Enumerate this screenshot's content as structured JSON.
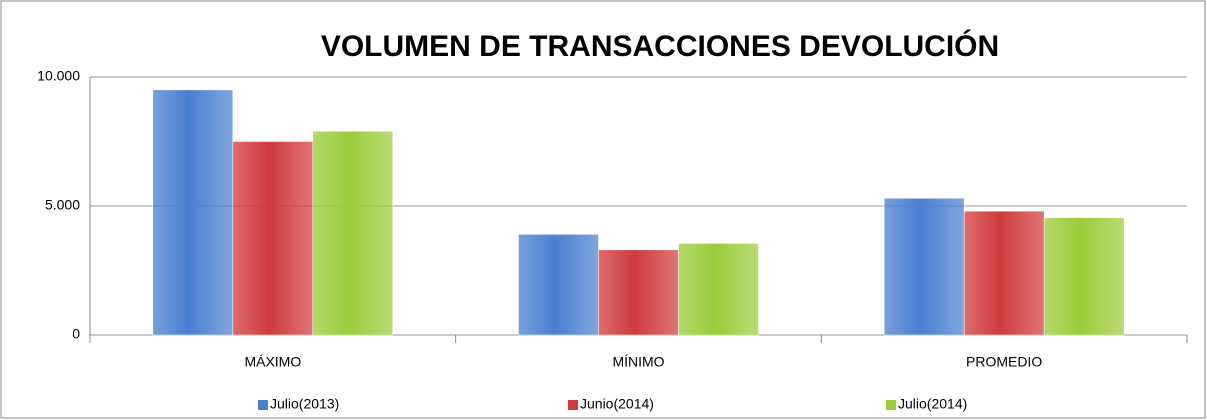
{
  "chart_data": {
    "type": "bar",
    "title": "VOLUMEN DE TRANSACCIONES DEVOLUCIÓN",
    "categories": [
      "MÁXIMO",
      "MÍNIMO",
      "PROMEDIO"
    ],
    "series": [
      {
        "name": "Julio(2013)",
        "color": "#4a7fd0",
        "values": [
          9500,
          3900,
          5300
        ]
      },
      {
        "name": "Junio(2014)",
        "color": "#d03b3b",
        "values": [
          7500,
          3300,
          4800
        ]
      },
      {
        "name": "Julio(2014)",
        "color": "#9bcc3a",
        "values": [
          7900,
          3550,
          4550
        ]
      }
    ],
    "ylim": [
      0,
      10000
    ],
    "yticks": [
      0,
      {
        "value": 5000,
        "label": "5.000"
      },
      {
        "value": 10000,
        "label": "10.000"
      }
    ],
    "grid": true,
    "legend": "bottom"
  }
}
